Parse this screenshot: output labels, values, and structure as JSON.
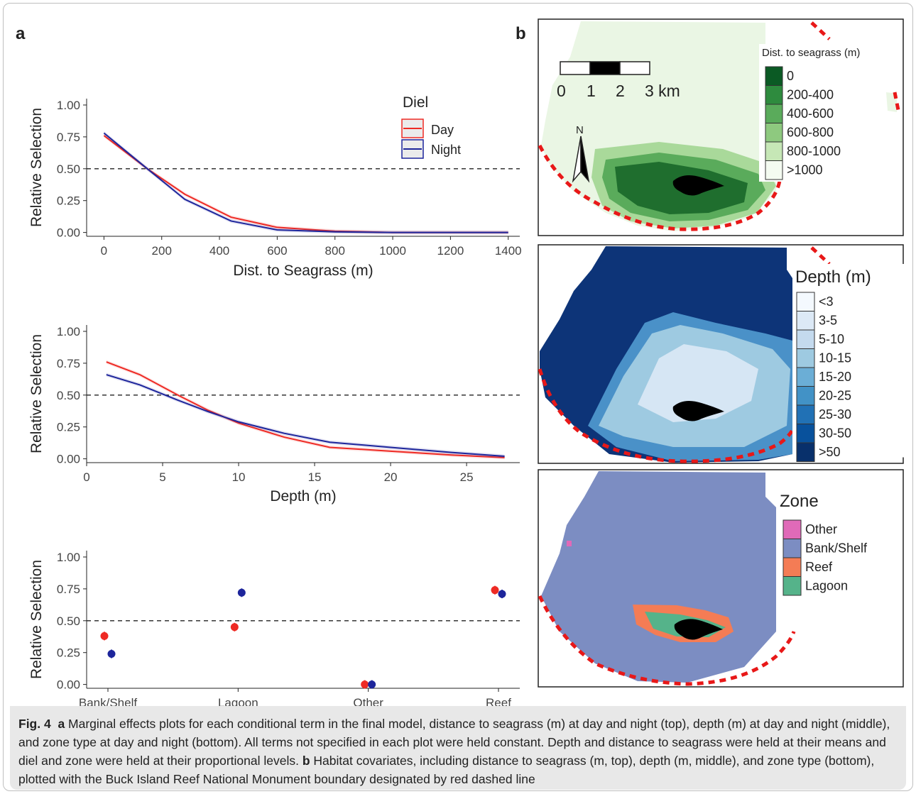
{
  "panel_a_label": "a",
  "panel_b_label": "b",
  "legend_a": {
    "title": "Diel",
    "items": [
      {
        "label": "Day",
        "color": "#ee2a24"
      },
      {
        "label": "Night",
        "color": "#1d259b"
      }
    ]
  },
  "chart_data": [
    {
      "type": "line",
      "xlabel": "Dist. to Seagrass (m)",
      "ylabel": "Relative Selection",
      "xlim": [
        -60,
        1440
      ],
      "ylim": [
        -0.03,
        1.05
      ],
      "xticks": [
        "0",
        "200",
        "400",
        "600",
        "800",
        "1000",
        "1200",
        "1400"
      ],
      "yticks": [
        "0.00",
        "0.25",
        "0.50",
        "0.75",
        "1.00"
      ],
      "reference_line": 0.5,
      "series": [
        {
          "name": "Day",
          "color": "#ee2a24",
          "x": [
            0,
            150,
            280,
            440,
            600,
            800,
            1000,
            1400
          ],
          "y": [
            0.76,
            0.5,
            0.3,
            0.12,
            0.04,
            0.01,
            0.0,
            0.0
          ]
        },
        {
          "name": "Night",
          "color": "#1d259b",
          "x": [
            0,
            150,
            280,
            440,
            600,
            800,
            1000,
            1400
          ],
          "y": [
            0.78,
            0.5,
            0.26,
            0.09,
            0.02,
            0.005,
            0.0,
            0.0
          ]
        }
      ]
    },
    {
      "type": "line",
      "xlabel": "Depth (m)",
      "ylabel": "Relative Selection",
      "xlim": [
        0,
        28.5
      ],
      "ylim": [
        -0.03,
        1.05
      ],
      "xticks": [
        "0",
        "5",
        "10",
        "15",
        "20",
        "25"
      ],
      "yticks": [
        "0.00",
        "0.25",
        "0.50",
        "0.75",
        "1.00"
      ],
      "reference_line": 0.5,
      "series": [
        {
          "name": "Day",
          "color": "#ee2a24",
          "x": [
            1.3,
            3.5,
            6,
            8,
            10,
            13,
            16,
            20,
            24,
            27.5
          ],
          "y": [
            0.76,
            0.66,
            0.5,
            0.38,
            0.28,
            0.17,
            0.09,
            0.06,
            0.03,
            0.01
          ]
        },
        {
          "name": "Night",
          "color": "#1d259b",
          "x": [
            1.3,
            3.5,
            6,
            8,
            10,
            13,
            16,
            20,
            24,
            27.5
          ],
          "y": [
            0.66,
            0.58,
            0.46,
            0.37,
            0.29,
            0.2,
            0.13,
            0.09,
            0.05,
            0.02
          ]
        }
      ]
    },
    {
      "type": "scatter",
      "xlabel": "",
      "ylabel": "Relative Selection",
      "categories": [
        "Bank/Shelf",
        "Lagoon",
        "Other",
        "Reef"
      ],
      "ylim": [
        -0.03,
        1.05
      ],
      "yticks": [
        "0.00",
        "0.25",
        "0.50",
        "0.75",
        "1.00"
      ],
      "reference_line": 0.5,
      "series": [
        {
          "name": "Day",
          "color": "#ee2a24",
          "values": [
            0.38,
            0.45,
            0.0,
            0.74
          ]
        },
        {
          "name": "Night",
          "color": "#1d259b",
          "values": [
            0.24,
            0.72,
            0.0,
            0.71
          ]
        }
      ]
    }
  ],
  "map_scale": {
    "labels": [
      "0",
      "1",
      "2",
      "3 km"
    ],
    "north": "N"
  },
  "map_legends": [
    {
      "title": "Dist. to seagrass (m)",
      "items": [
        {
          "label": "0",
          "color": "#0b5a24"
        },
        {
          "label": "200-400",
          "color": "#2e8b3e"
        },
        {
          "label": "400-600",
          "color": "#5aab5b"
        },
        {
          "label": "600-800",
          "color": "#8ec97f"
        },
        {
          "label": "800-1000",
          "color": "#c6e7b6"
        },
        {
          "label": ">1000",
          "color": "#f4fbf1"
        }
      ]
    },
    {
      "title": "Depth (m)",
      "items": [
        {
          "label": "<3",
          "color": "#f4f9fe"
        },
        {
          "label": "3-5",
          "color": "#dce9f6"
        },
        {
          "label": "5-10",
          "color": "#c4daee"
        },
        {
          "label": "10-15",
          "color": "#9ecae1"
        },
        {
          "label": "15-20",
          "color": "#6baed6"
        },
        {
          "label": "20-25",
          "color": "#4292c6"
        },
        {
          "label": "25-30",
          "color": "#2171b5"
        },
        {
          "label": "30-50",
          "color": "#08519c"
        },
        {
          "label": ">50",
          "color": "#08306b"
        }
      ]
    },
    {
      "title": "Zone",
      "items": [
        {
          "label": "Other",
          "color": "#e06ab8"
        },
        {
          "label": "Bank/Shelf",
          "color": "#7c8dc2"
        },
        {
          "label": "Reef",
          "color": "#f47c55"
        },
        {
          "label": "Lagoon",
          "color": "#55b38a"
        }
      ]
    }
  ],
  "caption": {
    "fig": "Fig. 4",
    "a_label": "a",
    "a_text": " Marginal effects plots for each conditional term in the final model, distance to seagrass (m) at day and night (top), depth (m) at day and night (middle), and zone type at day and night (bottom). All terms not specified in each plot were held constant. Depth and distance to seagrass were held at their means and diel and zone were held at their proportional levels. ",
    "b_label": "b",
    "b_text": " Habitat covariates, including distance to seagrass (m, top), depth (m, middle), and zone type (bottom), plotted with the Buck Island Reef National Monument boundary designated by red dashed line"
  }
}
